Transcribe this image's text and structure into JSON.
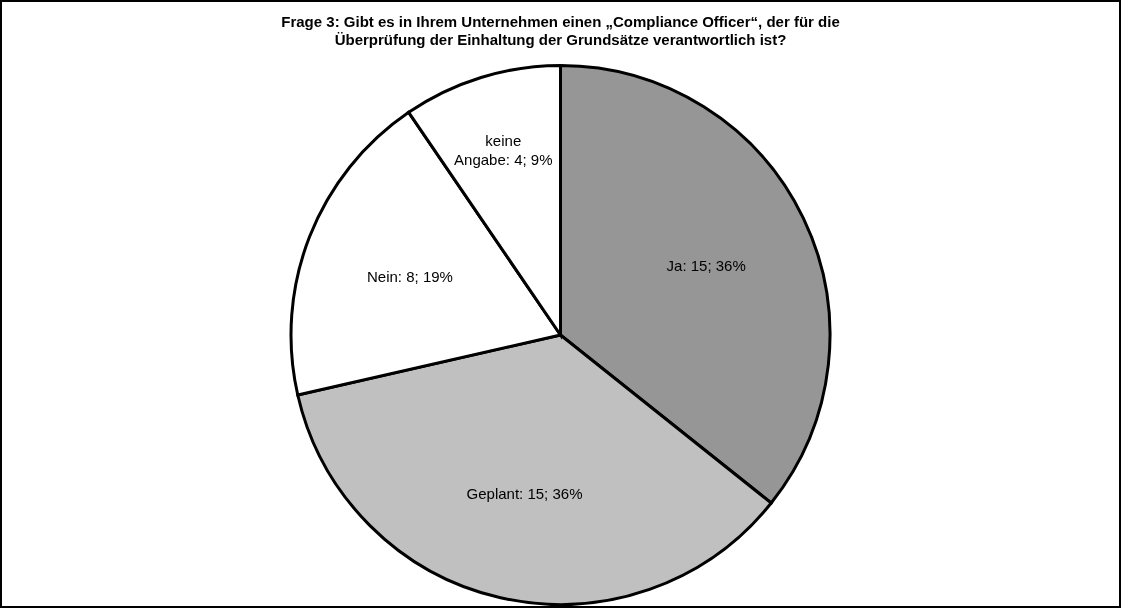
{
  "chart_data": {
    "type": "pie",
    "title": "Frage 3: Gibt es in Ihrem Unternehmen einen „Compliance Officer“, der für die Überprüfung der Einhaltung der Grundsätze verantwortlich ist?",
    "categories": [
      "Ja",
      "Geplant",
      "Nein",
      "keine Angabe"
    ],
    "values": [
      15,
      15,
      8,
      4
    ],
    "value_labels": [
      "15; 36%",
      "15; 36%",
      "8; 19%",
      "4; 9%"
    ],
    "colors": [
      "#969696",
      "#c0c0c0",
      "#ffffff",
      "#ffffff"
    ],
    "legend": false
  }
}
